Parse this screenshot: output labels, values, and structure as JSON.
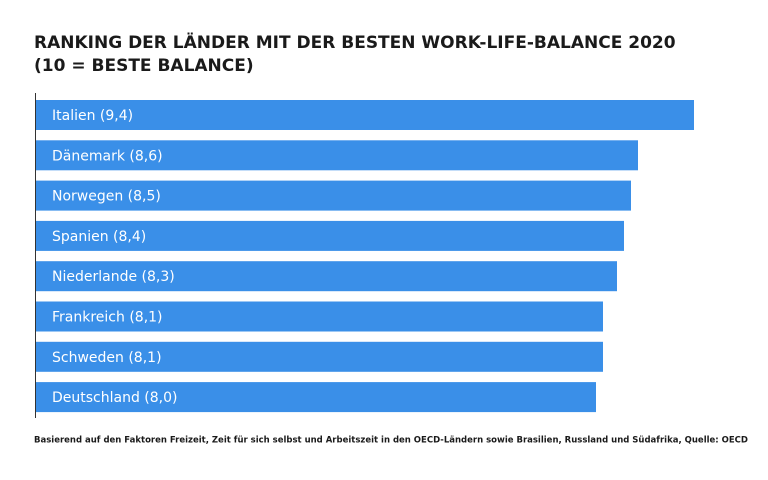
{
  "chart_data": {
    "type": "hbar",
    "title": "RANKING DER LÄNDER MIT DER BESTEN WORK-LIFE-BALANCE 2020",
    "subtitle": "(10 = BESTE BALANCE)",
    "categories": [
      "Italien (9,4)",
      "Dänemark (8,6)",
      "Norwegen (8,5)",
      "Spanien (8,4)",
      "Niederlande (8,3)",
      "Frankreich (8,1)",
      "Schweden (8,1)",
      "Deutschland (8,0)"
    ],
    "values": [
      9.4,
      8.6,
      8.5,
      8.4,
      8.3,
      8.1,
      8.1,
      8.0
    ],
    "color": "#3a8fe8",
    "note": "Basierend auf den Faktoren Freizeit, Zeit für sich selbst und Arbeitszeit in den OECD-Ländern sowie Brasilien, Russland und Südafrika, Quelle: OECD"
  }
}
